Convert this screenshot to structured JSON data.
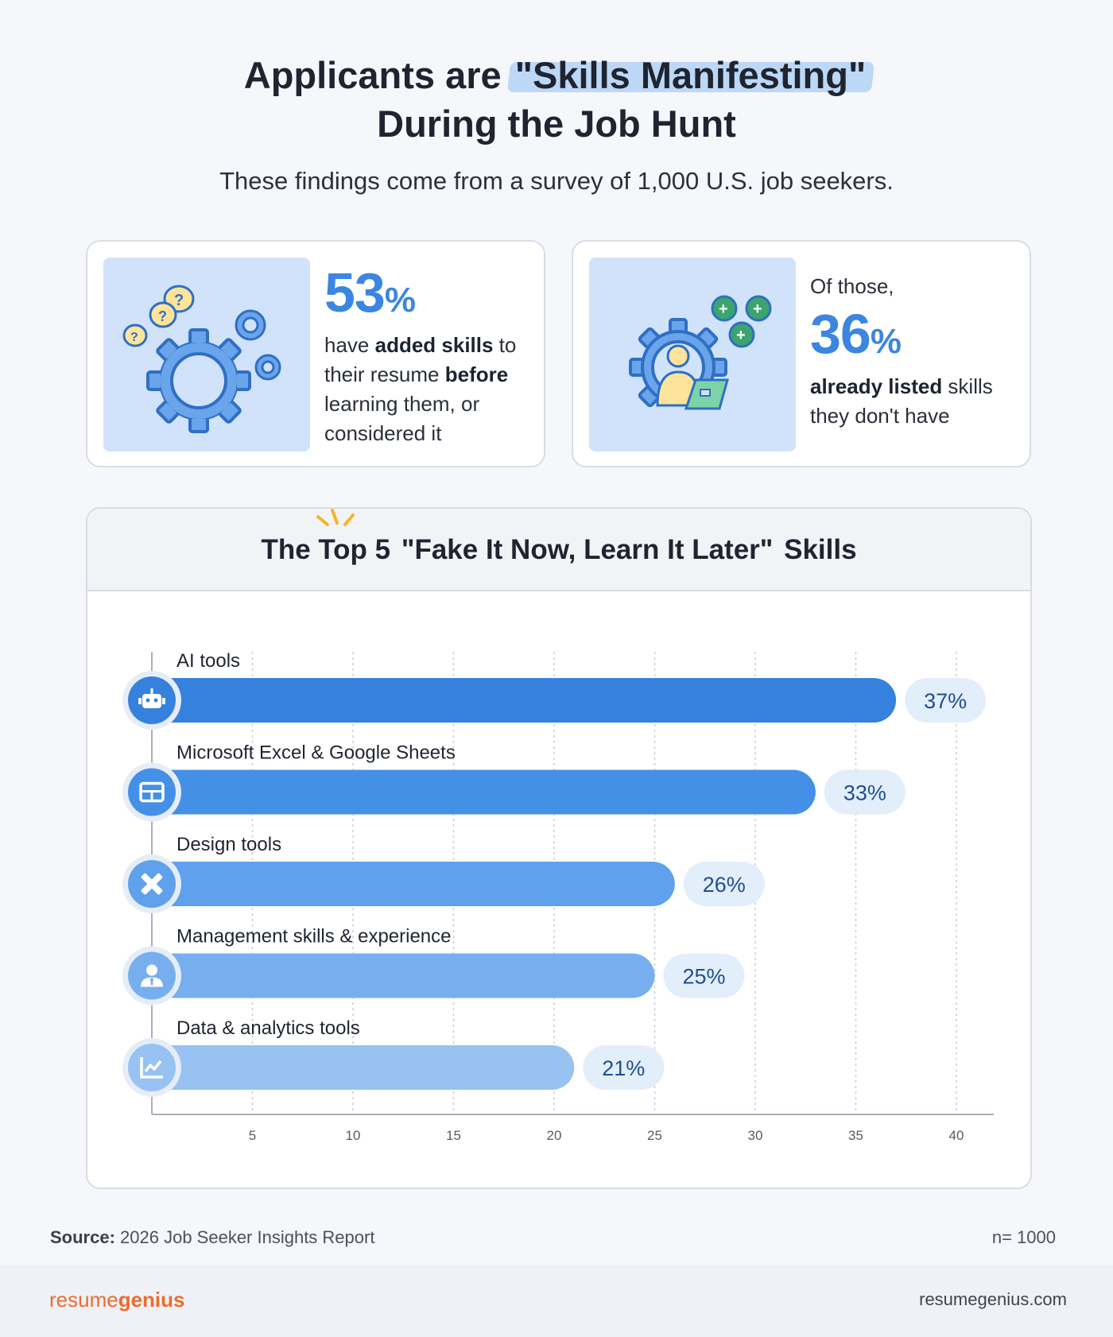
{
  "header": {
    "title_prefix": "Applicants are ",
    "title_highlight": "\"Skills Manifesting\"",
    "title_line2": "During the Job Hunt",
    "subtitle": "These findings come from a survey of 1,000 U.S. job seekers."
  },
  "stat_left": {
    "number": "53",
    "percent_sign": "%",
    "text_1": "have ",
    "text_bold_1": "added skills",
    "text_2": " to their resume ",
    "text_bold_2": "before",
    "text_3": " learning them, or considered it",
    "image_icon": "gears-question-icon"
  },
  "stat_right": {
    "lead": "Of those,",
    "number": "36",
    "percent_sign": "%",
    "text_bold": "already listed",
    "text_rest": " skills they don't have",
    "image_icon": "person-laptop-gear-icon"
  },
  "chart_section": {
    "title_prefix": "The Top 5 ",
    "title_highlight": "\"Fake It Now, Learn It Later\"",
    "title_suffix": " Skills"
  },
  "chart_data": {
    "type": "bar",
    "orientation": "horizontal",
    "title": "The Top 5 \"Fake It Now, Learn It Later\" Skills",
    "categories": [
      "AI tools",
      "Microsoft Excel & Google Sheets",
      "Design tools",
      "Management skills & experience",
      "Data & analytics tools"
    ],
    "values": [
      37,
      33,
      26,
      25,
      21
    ],
    "value_labels": [
      "37%",
      "33%",
      "26%",
      "25%",
      "21%"
    ],
    "icons": [
      "robot-icon",
      "spreadsheet-icon",
      "design-pencil-ruler-icon",
      "manager-person-icon",
      "line-chart-icon"
    ],
    "bar_colors": [
      "#3581dd",
      "#4390e6",
      "#5fa1ec",
      "#77afee",
      "#97c2f2"
    ],
    "xticks": [
      5,
      10,
      15,
      20,
      25,
      30,
      35,
      40
    ],
    "xlim": [
      0,
      42
    ],
    "grid": true,
    "xlabel": "",
    "ylabel": ""
  },
  "footer": {
    "source_label": "Source:",
    "source_text": " 2026 Job Seeker Insights Report",
    "n_value": "n= 1000",
    "brand_light": "resume",
    "brand_bold": "genius",
    "website": "resumegenius.com"
  },
  "colors": {
    "accent_blue": "#3b86e0",
    "highlight": "#bcd8f6",
    "brand_orange": "#f06a2d",
    "green": "#3ba56e"
  }
}
